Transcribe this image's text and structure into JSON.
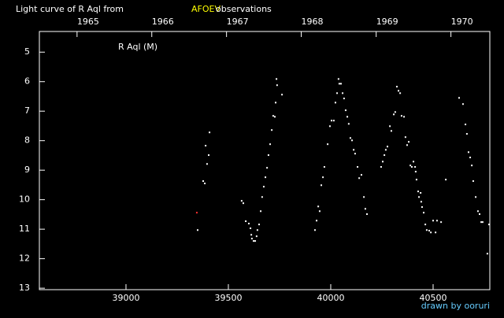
{
  "chart_data": {
    "type": "scatter",
    "title": "Light curve of R Aql from",
    "title_source": "AFOEV",
    "title_suffix": "observations",
    "annotation": "R Aql (M)",
    "credit": "drawn by ooruri",
    "background": "#000000",
    "axis_color": "#ffffff",
    "title_source_color": "#ffff00",
    "credit_color": "#66ccff",
    "xlim": [
      38577,
      40777
    ],
    "xticks": [
      39000,
      39500,
      40000,
      40500
    ],
    "x2ticks": [
      {
        "value": 38761,
        "label": "1965"
      },
      {
        "value": 39126,
        "label": "1966"
      },
      {
        "value": 39491,
        "label": "1967"
      },
      {
        "value": 39856,
        "label": "1968"
      },
      {
        "value": 40222,
        "label": "1969"
      },
      {
        "value": 40587,
        "label": "1970"
      }
    ],
    "ylim": [
      4.3,
      13.05
    ],
    "y_inverted": true,
    "yticks": [
      5,
      6,
      7,
      8,
      9,
      10,
      11,
      12,
      13
    ],
    "series": [
      {
        "color": "#ffffff",
        "x": [
          39350,
          39377,
          39385,
          39389,
          39396,
          39404,
          39408,
          39565,
          39573,
          39585,
          39600,
          39608,
          39612,
          39615,
          39623,
          39631,
          39638,
          39642,
          39650,
          39658,
          39665,
          39673,
          39681,
          39689,
          39696,
          39704,
          39712,
          39719,
          39727,
          39731,
          39735,
          39738,
          39762,
          39923,
          39931,
          39939,
          39946,
          39954,
          39962,
          39969,
          39985,
          39996,
          40004,
          40015,
          40023,
          40031,
          40038,
          40042,
          40050,
          40058,
          40065,
          40073,
          40081,
          40088,
          40096,
          40104,
          40112,
          40119,
          40131,
          40139,
          40150,
          40162,
          40169,
          40177,
          40246,
          40254,
          40262,
          40269,
          40277,
          40289,
          40296,
          40308,
          40315,
          40323,
          40331,
          40339,
          40346,
          40358,
          40365,
          40373,
          40381,
          40389,
          40396,
          40404,
          40412,
          40415,
          40419,
          40427,
          40431,
          40439,
          40442,
          40446,
          40454,
          40462,
          40469,
          40481,
          40489,
          40500,
          40512,
          40519,
          40539,
          40562,
          40627,
          40646,
          40658,
          40665,
          40673,
          40681,
          40689,
          40696,
          40708,
          40719,
          40727,
          40735,
          40742,
          40765,
          40773
        ],
        "values": [
          11.03,
          9.37,
          9.45,
          8.17,
          8.79,
          8.49,
          7.72,
          10.04,
          10.12,
          10.73,
          10.81,
          10.97,
          11.19,
          11.32,
          11.4,
          11.4,
          11.24,
          11.03,
          10.84,
          10.39,
          9.91,
          9.56,
          9.24,
          8.92,
          8.49,
          8.12,
          7.64,
          7.16,
          7.19,
          6.71,
          5.91,
          6.12,
          6.44,
          11.03,
          10.71,
          10.23,
          10.39,
          9.51,
          9.24,
          8.89,
          8.12,
          7.51,
          7.32,
          7.32,
          6.71,
          6.39,
          5.91,
          6.07,
          6.07,
          6.39,
          6.57,
          6.97,
          7.19,
          7.43,
          7.91,
          7.99,
          8.31,
          8.44,
          8.89,
          9.27,
          9.16,
          9.91,
          10.31,
          10.49,
          8.89,
          8.71,
          8.49,
          8.31,
          8.2,
          7.51,
          7.67,
          7.11,
          7.03,
          6.17,
          6.31,
          6.39,
          7.16,
          7.19,
          7.88,
          8.15,
          8.04,
          8.84,
          8.89,
          8.71,
          8.89,
          9.05,
          9.32,
          9.72,
          9.91,
          9.77,
          10.07,
          10.25,
          10.44,
          10.84,
          11.03,
          11.05,
          11.11,
          10.71,
          11.11,
          10.71,
          10.76,
          9.32,
          6.55,
          6.76,
          7.45,
          7.77,
          8.39,
          8.57,
          8.84,
          9.37,
          9.91,
          10.39,
          10.49,
          10.76,
          10.76,
          11.83,
          10.84
        ]
      },
      {
        "color": "#ff3030",
        "x": [
          39346
        ],
        "values": [
          10.44
        ]
      }
    ]
  }
}
